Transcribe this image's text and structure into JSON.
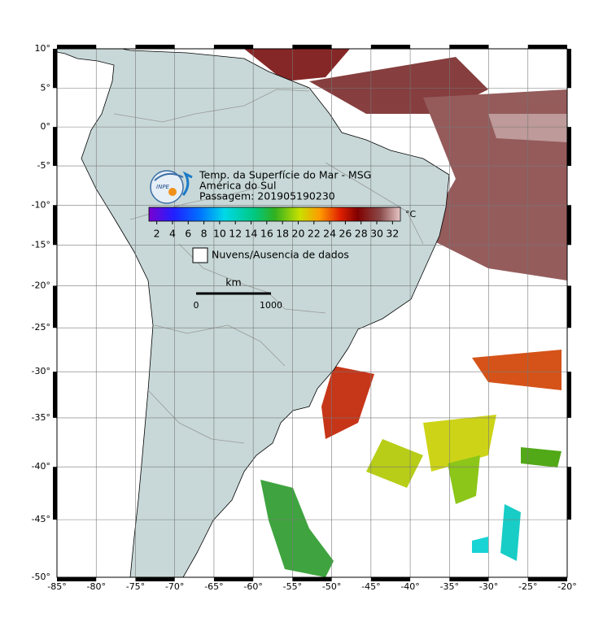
{
  "map": {
    "title": "Temp. da Superfície do Mar - MSG",
    "region": "América do Sul",
    "pass": "Passagem: 201905190230",
    "logo": "INPE",
    "colorbar": {
      "ticks": [
        2,
        4,
        6,
        8,
        10,
        12,
        14,
        16,
        18,
        20,
        22,
        24,
        26,
        28,
        30,
        32
      ],
      "unit": "°C"
    },
    "legend": "Nuvens/Ausencia de dados",
    "scale": {
      "unit": "km",
      "labels": [
        "0",
        "1000"
      ]
    },
    "lat_labels": [
      {
        "value": 10,
        "label": "10°"
      },
      {
        "value": 5,
        "label": "5°"
      },
      {
        "value": 0,
        "label": "0°"
      },
      {
        "value": -5,
        "label": "-5°"
      },
      {
        "value": -10,
        "label": "-10°"
      },
      {
        "value": -15,
        "label": "-15°"
      },
      {
        "value": -20,
        "label": "-20°"
      },
      {
        "value": -25,
        "label": "-25°"
      },
      {
        "value": -30,
        "label": "-30°"
      },
      {
        "value": -35,
        "label": "-35°"
      },
      {
        "value": -40,
        "label": "-40°"
      },
      {
        "value": -45,
        "label": "-45°"
      },
      {
        "value": -50,
        "label": "-50°"
      }
    ],
    "lon_labels": [
      {
        "value": -85,
        "label": "-85°"
      },
      {
        "value": -80,
        "label": "-80°"
      },
      {
        "value": -75,
        "label": "-75°"
      },
      {
        "value": -70,
        "label": "-70°"
      },
      {
        "value": -65,
        "label": "-65°"
      },
      {
        "value": -60,
        "label": "-60°"
      },
      {
        "value": -55,
        "label": "-55°"
      },
      {
        "value": -50,
        "label": "-50°"
      },
      {
        "value": -45,
        "label": "-45°"
      },
      {
        "value": -40,
        "label": "-40°"
      },
      {
        "value": -35,
        "label": "-35°"
      },
      {
        "value": -30,
        "label": "-30°"
      },
      {
        "value": -25,
        "label": "-25°"
      },
      {
        "value": -20,
        "label": "-20°"
      }
    ]
  }
}
